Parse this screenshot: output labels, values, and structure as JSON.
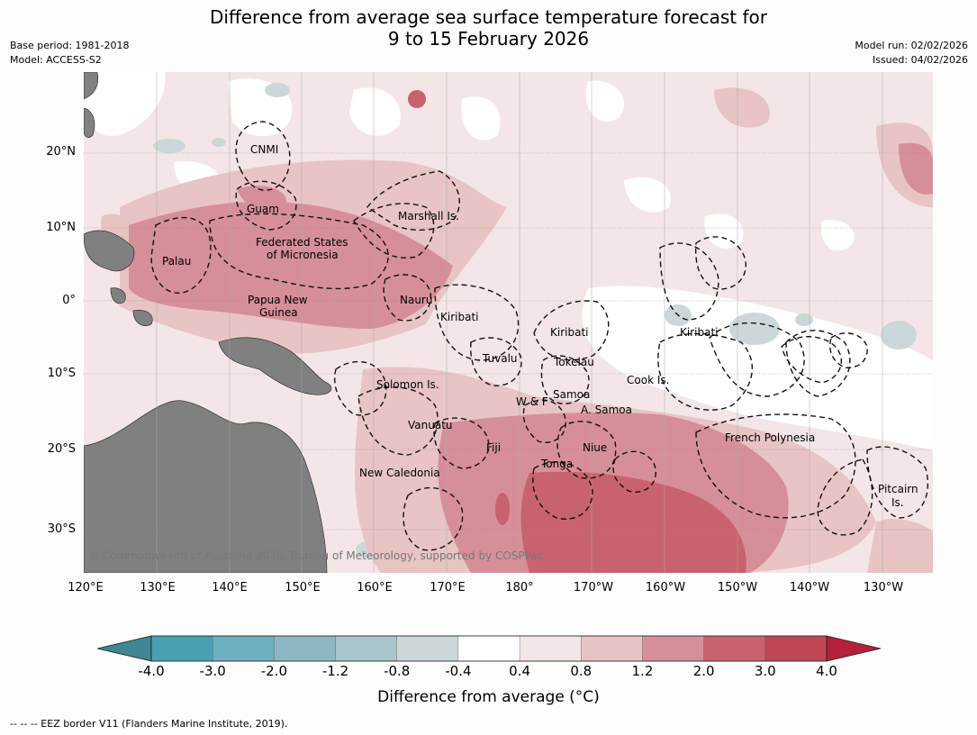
{
  "title_line1": "Difference from average sea surface temperature forecast for",
  "title_line2": "9 to 15 February 2026",
  "base_period": "Base period: 1981-2018",
  "model": "Model: ACCESS-S2",
  "model_run": "Model run: 02/02/2026",
  "issued": "Issued: 04/02/2026",
  "lat_labels": [
    "20°N",
    "10°N",
    "0°",
    "10°S",
    "20°S",
    "30°S"
  ],
  "lon_labels": [
    "120°E",
    "130°E",
    "140°E",
    "150°E",
    "160°E",
    "170°E",
    "180°",
    "170°W",
    "160°W",
    "150°W",
    "140°W",
    "130°W"
  ],
  "regions": {
    "cnmi": "CNMI",
    "guam": "Guam",
    "marshall": "Marshall Is.",
    "fsm_1": "Federated States",
    "fsm_2": "of Micronesia",
    "palau": "Palau",
    "png_1": "Papua New",
    "png_2": "Guinea",
    "nauru": "Nauru",
    "kiribati_w": "Kiribati",
    "kiribati_c": "Kiribati",
    "kiribati_e": "Kiribati",
    "tuvalu": "Tuvalu",
    "tokelau": "Tokelau",
    "cook": "Cook Is.",
    "solomon": "Solomon Is.",
    "samoa": "Samoa",
    "wf": "W & F",
    "asamoa": "A. Samoa",
    "vanuatu": "Vanuatu",
    "fiji": "Fiji",
    "niue": "Niue",
    "tonga": "Tonga",
    "fp": "French Polynesia",
    "newcal": "New Caledonia",
    "pitcairn_1": "Pitcairn",
    "pitcairn_2": "Is."
  },
  "copyright": "© Commonwealth of Australia 2026, Bureau of Meteorology, supported by COSPPac",
  "colorbar": {
    "ticks": [
      "-4.0",
      "-3.0",
      "-2.0",
      "-1.2",
      "-0.8",
      "-0.4",
      "0.4",
      "0.8",
      "1.2",
      "2.0",
      "3.0",
      "4.0"
    ],
    "colors": [
      "#3f8593",
      "#4aa0b3",
      "#6eb0c0",
      "#8db7c3",
      "#a9c6cc",
      "#cbd7d9",
      "#ffffff",
      "#f4e6e6",
      "#e8c4c4",
      "#d68f98",
      "#c9626f",
      "#c04756",
      "#b5203a"
    ],
    "label": "Difference from average (°C)"
  },
  "footnote": "--  --  -- EEZ border V11 (Flanders Marine Institute, 2019)."
}
